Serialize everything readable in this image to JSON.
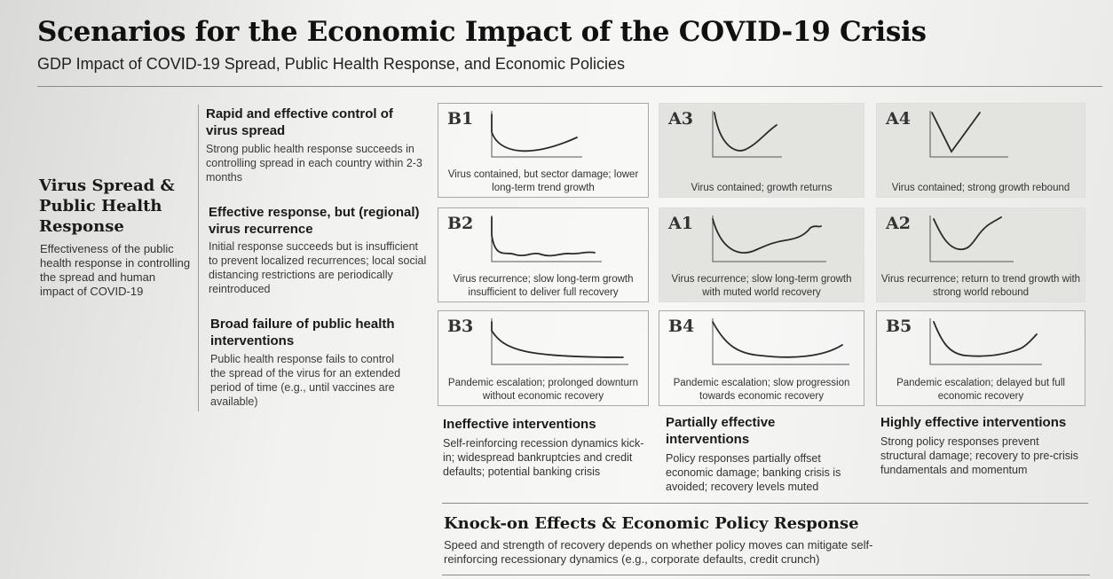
{
  "title": "Scenarios for the Economic Impact of the COVID-19 Crisis",
  "subtitle": "GDP Impact of COVID-19 Spread, Public Health Response, and Economic Policies",
  "row_header": {
    "title": "Virus Spread & Public Health Response",
    "description": "Effectiveness of the public health response in controlling the spread and human impact of COVID-19"
  },
  "health_scenarios": [
    {
      "heading": "Rapid and effective control of virus spread",
      "description": "Strong public health response succeeds in controlling spread in each country within 2-3 months"
    },
    {
      "heading": "Effective response, but (regional) virus recurrence",
      "description": "Initial response succeeds but is insufficient to prevent localized recurrences; local social distancing restrictions are periodically reintroduced"
    },
    {
      "heading": "Broad failure of public health interventions",
      "description": "Public health response fails to control the spread of the virus for an extended period of time (e.g., until vaccines are available)"
    }
  ],
  "panels": [
    {
      "id": "B1",
      "caption": "Virus contained, but sector damage; lower long-term trend growth",
      "curve": "b1",
      "shaded": false
    },
    {
      "id": "A3",
      "caption": "Virus contained; growth returns",
      "curve": "a3",
      "shaded": true
    },
    {
      "id": "A4",
      "caption": "Virus contained; strong growth rebound",
      "curve": "a4",
      "shaded": true
    },
    {
      "id": "B2",
      "caption": "Virus recurrence; slow long-term growth insufficient to deliver full recovery",
      "curve": "b2",
      "shaded": false
    },
    {
      "id": "A1",
      "caption": "Virus recurrence; slow long-term growth with muted world recovery",
      "curve": "a1",
      "shaded": true
    },
    {
      "id": "A2",
      "caption": "Virus recurrence; return to trend growth with strong world rebound",
      "curve": "a2",
      "shaded": true
    },
    {
      "id": "B3",
      "caption": "Pandemic escalation; prolonged downturn without economic recovery",
      "curve": "b3",
      "shaded": false
    },
    {
      "id": "B4",
      "caption": "Pandemic escalation; slow progression towards economic recovery",
      "curve": "b4",
      "shaded": false
    },
    {
      "id": "B5",
      "caption": "Pandemic escalation; delayed but full economic recovery",
      "curve": "b5",
      "shaded": false
    }
  ],
  "policy_columns": [
    {
      "heading": "Ineffective interventions",
      "description": "Self-reinforcing recession dynamics kick-in; widespread bankruptcies and credit defaults; potential banking crisis"
    },
    {
      "heading": "Partially effective interventions",
      "description": "Policy responses partially offset economic damage; banking crisis is avoided; recovery levels muted"
    },
    {
      "heading": "Highly effective interventions",
      "description": "Strong policy responses prevent structural damage; recovery to pre-crisis fundamentals and momentum"
    }
  ],
  "knock_on": {
    "title": "Knock-on Effects & Economic Policy Response",
    "description": "Speed and strength of recovery depends on whether policy moves can mitigate self-reinforcing recessionary dynamics (e.g., corporate defaults, credit crunch)"
  }
}
